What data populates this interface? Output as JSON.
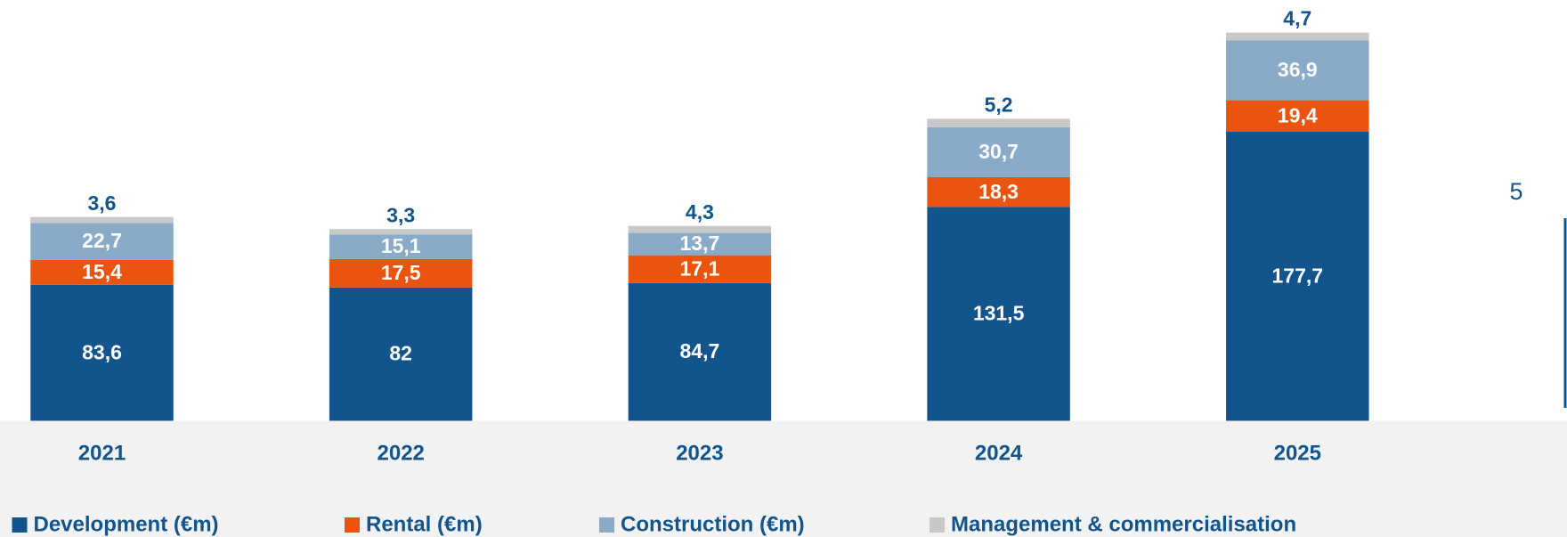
{
  "chart_data": {
    "type": "bar",
    "stacked": true,
    "categories": [
      "2021",
      "2022",
      "2023",
      "2024",
      "2025"
    ],
    "series": [
      {
        "name": "Development (€m)",
        "color": "#12558c",
        "values": [
          83.6,
          82,
          84.7,
          131.5,
          177.7
        ],
        "value_labels": [
          "83,6",
          "82",
          "84,7",
          "131,5",
          "177,7"
        ]
      },
      {
        "name": "Rental (€m)",
        "color": "#ea540f",
        "values": [
          15.4,
          17.5,
          17.1,
          18.3,
          19.4
        ],
        "value_labels": [
          "15,4",
          "17,5",
          "17,1",
          "18,3",
          "19,4"
        ]
      },
      {
        "name": "Construction (€m)",
        "color": "#8aabc8",
        "values": [
          22.7,
          15.1,
          13.7,
          30.7,
          36.9
        ],
        "value_labels": [
          "22,7",
          "15,1",
          "13,7",
          "30,7",
          "36,9"
        ]
      },
      {
        "name": "Management & commercialisation",
        "color": "#c8c8c8",
        "values": [
          3.6,
          3.3,
          4.3,
          5.2,
          4.7
        ],
        "value_labels": [
          "3,6",
          "3,3",
          "4,3",
          "5,2",
          "4,7"
        ]
      }
    ],
    "legend": "bottom"
  },
  "page_number": "5"
}
